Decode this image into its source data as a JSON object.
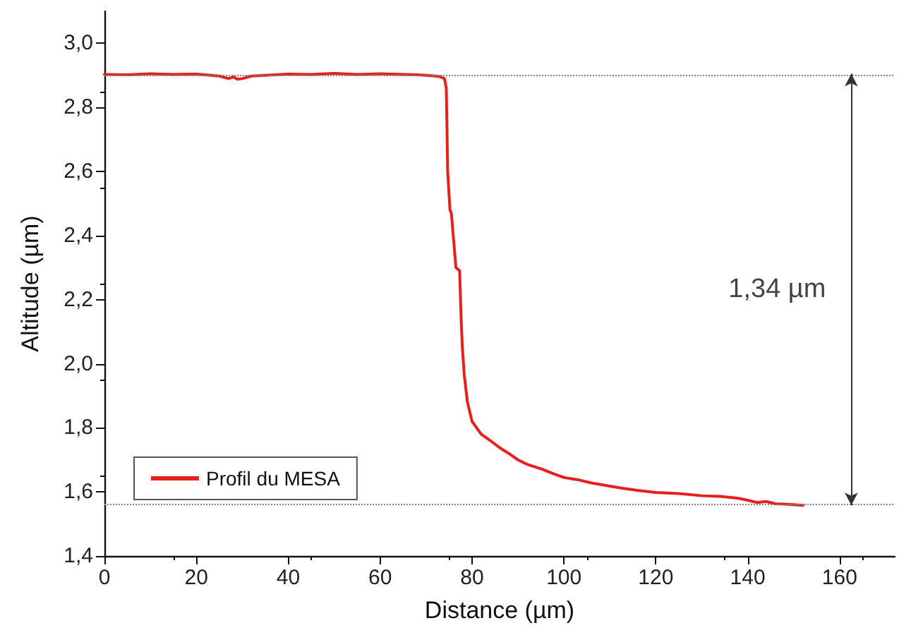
{
  "chart_data": {
    "type": "line",
    "xlabel": "Distance (µm)",
    "ylabel": "Altitude (µm)",
    "xlim": [
      0,
      172
    ],
    "xticks": [
      0,
      20,
      40,
      60,
      80,
      100,
      120,
      140,
      160
    ],
    "ylim": [
      1.4,
      3.1
    ],
    "yticks": [
      {
        "value": 1.4,
        "label": "1,4"
      },
      {
        "value": 1.6,
        "label": "1,6"
      },
      {
        "value": 1.8,
        "label": "1,8"
      },
      {
        "value": 2.0,
        "label": "2,0"
      },
      {
        "value": 2.2,
        "label": "2,2"
      },
      {
        "value": 2.4,
        "label": "2,4"
      },
      {
        "value": 2.6,
        "label": "2,6"
      },
      {
        "value": 2.8,
        "label": "2,8"
      },
      {
        "value": 3.0,
        "label": "3,0"
      }
    ],
    "grid": false,
    "legend": "bottom left",
    "marker": "none",
    "line_style": "solid",
    "series": [
      {
        "name": "Profil du MESA",
        "color": "#e8201c",
        "x": [
          0,
          5,
          10,
          15,
          20,
          25,
          27,
          28,
          29,
          30,
          32,
          35,
          40,
          45,
          50,
          55,
          60,
          65,
          68,
          70,
          72,
          73,
          74,
          74.4,
          74.7,
          75.2,
          75.5,
          76.5,
          77.3,
          77.6,
          77.9,
          78.3,
          79,
          80,
          82,
          84,
          86,
          88,
          90,
          92,
          95,
          98,
          100,
          103,
          106,
          110,
          113,
          116,
          120,
          125,
          130,
          134,
          138,
          140,
          142,
          144,
          146,
          148,
          150,
          152
        ],
        "values": [
          2.903,
          2.902,
          2.905,
          2.903,
          2.904,
          2.898,
          2.89,
          2.895,
          2.888,
          2.89,
          2.898,
          2.9,
          2.904,
          2.903,
          2.906,
          2.903,
          2.905,
          2.903,
          2.902,
          2.9,
          2.898,
          2.896,
          2.89,
          2.86,
          2.6,
          2.48,
          2.47,
          2.3,
          2.29,
          2.15,
          2.05,
          1.966,
          1.88,
          1.82,
          1.78,
          1.76,
          1.738,
          1.72,
          1.7,
          1.686,
          1.672,
          1.655,
          1.645,
          1.638,
          1.628,
          1.618,
          1.611,
          1.605,
          1.598,
          1.595,
          1.588,
          1.586,
          1.58,
          1.574,
          1.567,
          1.57,
          1.563,
          1.562,
          1.56,
          1.558
        ]
      }
    ],
    "ref_lines": [
      {
        "axis": "y",
        "value": 2.905,
        "color": "#808080",
        "line_style": "dotted"
      },
      {
        "axis": "y",
        "value": 1.558,
        "color": "#808080",
        "line_style": "dotted"
      }
    ],
    "annotations": [
      "1,34 µm"
    ]
  }
}
